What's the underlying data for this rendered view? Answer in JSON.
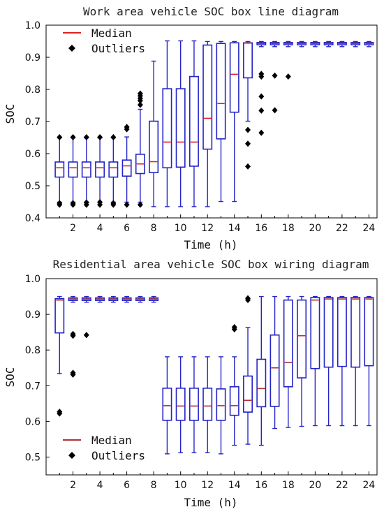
{
  "chart_data": [
    {
      "type": "box",
      "title": "Work area vehicle SOC box line diagram",
      "xlabel": "Time (h)",
      "ylabel": "SOC",
      "xlim": [
        0,
        24.6
      ],
      "ylim": [
        0.4,
        1.0
      ],
      "x_ticks": [
        2,
        4,
        6,
        8,
        10,
        12,
        14,
        16,
        18,
        20,
        22,
        24
      ],
      "y_ticks": [
        "0.4",
        "0.5",
        "0.6",
        "0.7",
        "0.8",
        "0.9",
        "1.0"
      ],
      "legend": {
        "position": "top-left",
        "median_label": "Median",
        "outliers_label": "Outliers"
      },
      "colors": {
        "box": "#2424c8",
        "median": "#e02020",
        "outlier": "#000000",
        "axis": "#000000"
      },
      "boxes": [
        {
          "x": 1,
          "q1": 0.527,
          "median": 0.556,
          "q3": 0.574,
          "low": 0.449,
          "high": 0.649,
          "outliers": [
            0.651,
            0.441,
            0.446
          ]
        },
        {
          "x": 2,
          "q1": 0.527,
          "median": 0.556,
          "q3": 0.574,
          "low": 0.449,
          "high": 0.649,
          "outliers": [
            0.651,
            0.441,
            0.446
          ]
        },
        {
          "x": 3,
          "q1": 0.527,
          "median": 0.556,
          "q3": 0.574,
          "low": 0.449,
          "high": 0.649,
          "outliers": [
            0.651,
            0.441,
            0.448
          ]
        },
        {
          "x": 4,
          "q1": 0.527,
          "median": 0.556,
          "q3": 0.574,
          "low": 0.449,
          "high": 0.649,
          "outliers": [
            0.651,
            0.441,
            0.449
          ]
        },
        {
          "x": 5,
          "q1": 0.527,
          "median": 0.556,
          "q3": 0.574,
          "low": 0.449,
          "high": 0.649,
          "outliers": [
            0.651,
            0.441,
            0.446
          ]
        },
        {
          "x": 6,
          "q1": 0.53,
          "median": 0.562,
          "q3": 0.58,
          "low": 0.449,
          "high": 0.652,
          "outliers": [
            0.676,
            0.683,
            0.441
          ]
        },
        {
          "x": 7,
          "q1": 0.538,
          "median": 0.568,
          "q3": 0.598,
          "low": 0.449,
          "high": 0.738,
          "outliers": [
            0.752,
            0.765,
            0.772,
            0.78,
            0.787,
            0.441
          ]
        },
        {
          "x": 8,
          "q1": 0.541,
          "median": 0.575,
          "q3": 0.701,
          "low": 0.435,
          "high": 0.888,
          "outliers": []
        },
        {
          "x": 9,
          "q1": 0.556,
          "median": 0.636,
          "q3": 0.802,
          "low": 0.435,
          "high": 0.951,
          "outliers": []
        },
        {
          "x": 10,
          "q1": 0.558,
          "median": 0.636,
          "q3": 0.802,
          "low": 0.435,
          "high": 0.951,
          "outliers": []
        },
        {
          "x": 11,
          "q1": 0.561,
          "median": 0.636,
          "q3": 0.84,
          "low": 0.435,
          "high": 0.951,
          "outliers": []
        },
        {
          "x": 12,
          "q1": 0.614,
          "median": 0.71,
          "q3": 0.938,
          "low": 0.435,
          "high": 0.949,
          "outliers": []
        },
        {
          "x": 13,
          "q1": 0.646,
          "median": 0.756,
          "q3": 0.943,
          "low": 0.451,
          "high": 0.949,
          "outliers": []
        },
        {
          "x": 14,
          "q1": 0.729,
          "median": 0.847,
          "q3": 0.945,
          "low": 0.451,
          "high": 0.949,
          "outliers": []
        },
        {
          "x": 15,
          "q1": 0.836,
          "median": 0.944,
          "q3": 0.945,
          "low": 0.701,
          "high": 0.949,
          "outliers": [
            0.674,
            0.631,
            0.56
          ]
        },
        {
          "x": 16,
          "q1": 0.939,
          "median": 0.943,
          "q3": 0.946,
          "low": 0.933,
          "high": 0.949,
          "outliers": [
            0.848,
            0.84,
            0.778,
            0.734,
            0.665
          ]
        },
        {
          "x": 17,
          "q1": 0.939,
          "median": 0.943,
          "q3": 0.946,
          "low": 0.933,
          "high": 0.949,
          "outliers": [
            0.843,
            0.735
          ]
        },
        {
          "x": 18,
          "q1": 0.939,
          "median": 0.943,
          "q3": 0.946,
          "low": 0.933,
          "high": 0.949,
          "outliers": [
            0.84
          ]
        },
        {
          "x": 19,
          "q1": 0.939,
          "median": 0.943,
          "q3": 0.946,
          "low": 0.933,
          "high": 0.949,
          "outliers": []
        },
        {
          "x": 20,
          "q1": 0.939,
          "median": 0.943,
          "q3": 0.946,
          "low": 0.933,
          "high": 0.949,
          "outliers": []
        },
        {
          "x": 21,
          "q1": 0.939,
          "median": 0.943,
          "q3": 0.946,
          "low": 0.933,
          "high": 0.949,
          "outliers": []
        },
        {
          "x": 22,
          "q1": 0.939,
          "median": 0.943,
          "q3": 0.946,
          "low": 0.933,
          "high": 0.949,
          "outliers": []
        },
        {
          "x": 23,
          "q1": 0.939,
          "median": 0.943,
          "q3": 0.946,
          "low": 0.933,
          "high": 0.949,
          "outliers": []
        },
        {
          "x": 24,
          "q1": 0.939,
          "median": 0.943,
          "q3": 0.946,
          "low": 0.933,
          "high": 0.949,
          "outliers": []
        }
      ]
    },
    {
      "type": "box",
      "title": "Residential area vehicle SOC box wiring diagram",
      "xlabel": "Time (h)",
      "ylabel": "SOC",
      "xlim": [
        0,
        24.6
      ],
      "ylim": [
        0.45,
        1.0
      ],
      "x_ticks": [
        2,
        4,
        6,
        8,
        10,
        12,
        14,
        16,
        18,
        20,
        22,
        24
      ],
      "y_ticks": [
        "0.5",
        "0.6",
        "0.7",
        "0.8",
        "0.9",
        "1.0"
      ],
      "legend": {
        "position": "bottom-left",
        "median_label": "Median",
        "outliers_label": "Outliers"
      },
      "colors": {
        "box": "#2424c8",
        "median": "#b23030",
        "outlier": "#000000",
        "axis": "#000000"
      },
      "boxes": [
        {
          "x": 1,
          "q1": 0.848,
          "median": 0.94,
          "q3": 0.944,
          "low": 0.734,
          "high": 0.95,
          "outliers": [
            0.627,
            0.622
          ]
        },
        {
          "x": 2,
          "q1": 0.939,
          "median": 0.943,
          "q3": 0.946,
          "low": 0.934,
          "high": 0.95,
          "outliers": [
            0.845,
            0.84,
            0.736,
            0.731
          ]
        },
        {
          "x": 3,
          "q1": 0.939,
          "median": 0.943,
          "q3": 0.946,
          "low": 0.934,
          "high": 0.95,
          "outliers": [
            0.842
          ]
        },
        {
          "x": 4,
          "q1": 0.939,
          "median": 0.943,
          "q3": 0.946,
          "low": 0.934,
          "high": 0.95,
          "outliers": []
        },
        {
          "x": 5,
          "q1": 0.939,
          "median": 0.943,
          "q3": 0.946,
          "low": 0.934,
          "high": 0.95,
          "outliers": []
        },
        {
          "x": 6,
          "q1": 0.939,
          "median": 0.943,
          "q3": 0.946,
          "low": 0.934,
          "high": 0.95,
          "outliers": []
        },
        {
          "x": 7,
          "q1": 0.939,
          "median": 0.943,
          "q3": 0.946,
          "low": 0.934,
          "high": 0.95,
          "outliers": []
        },
        {
          "x": 8,
          "q1": 0.939,
          "median": 0.943,
          "q3": 0.946,
          "low": 0.934,
          "high": 0.95,
          "outliers": []
        },
        {
          "x": 9,
          "q1": 0.603,
          "median": 0.644,
          "q3": 0.693,
          "low": 0.509,
          "high": 0.781,
          "outliers": []
        },
        {
          "x": 10,
          "q1": 0.603,
          "median": 0.643,
          "q3": 0.693,
          "low": 0.512,
          "high": 0.781,
          "outliers": []
        },
        {
          "x": 11,
          "q1": 0.603,
          "median": 0.643,
          "q3": 0.693,
          "low": 0.512,
          "high": 0.781,
          "outliers": []
        },
        {
          "x": 12,
          "q1": 0.603,
          "median": 0.643,
          "q3": 0.693,
          "low": 0.512,
          "high": 0.781,
          "outliers": []
        },
        {
          "x": 13,
          "q1": 0.603,
          "median": 0.644,
          "q3": 0.691,
          "low": 0.509,
          "high": 0.781,
          "outliers": []
        },
        {
          "x": 14,
          "q1": 0.617,
          "median": 0.644,
          "q3": 0.697,
          "low": 0.533,
          "high": 0.781,
          "outliers": [
            0.864,
            0.858
          ]
        },
        {
          "x": 15,
          "q1": 0.626,
          "median": 0.659,
          "q3": 0.727,
          "low": 0.536,
          "high": 0.863,
          "outliers": [
            0.945,
            0.94
          ]
        },
        {
          "x": 16,
          "q1": 0.641,
          "median": 0.692,
          "q3": 0.774,
          "low": 0.533,
          "high": 0.95,
          "outliers": []
        },
        {
          "x": 17,
          "q1": 0.642,
          "median": 0.75,
          "q3": 0.842,
          "low": 0.58,
          "high": 0.95,
          "outliers": []
        },
        {
          "x": 18,
          "q1": 0.697,
          "median": 0.765,
          "q3": 0.94,
          "low": 0.583,
          "high": 0.95,
          "outliers": []
        },
        {
          "x": 19,
          "q1": 0.722,
          "median": 0.84,
          "q3": 0.94,
          "low": 0.586,
          "high": 0.95,
          "outliers": []
        },
        {
          "x": 20,
          "q1": 0.748,
          "median": 0.94,
          "q3": 0.947,
          "low": 0.588,
          "high": 0.95,
          "outliers": []
        },
        {
          "x": 21,
          "q1": 0.752,
          "median": 0.943,
          "q3": 0.947,
          "low": 0.588,
          "high": 0.95,
          "outliers": []
        },
        {
          "x": 22,
          "q1": 0.754,
          "median": 0.943,
          "q3": 0.947,
          "low": 0.588,
          "high": 0.95,
          "outliers": []
        },
        {
          "x": 23,
          "q1": 0.752,
          "median": 0.943,
          "q3": 0.947,
          "low": 0.588,
          "high": 0.95,
          "outliers": []
        },
        {
          "x": 24,
          "q1": 0.756,
          "median": 0.943,
          "q3": 0.947,
          "low": 0.588,
          "high": 0.95,
          "outliers": []
        }
      ]
    }
  ]
}
